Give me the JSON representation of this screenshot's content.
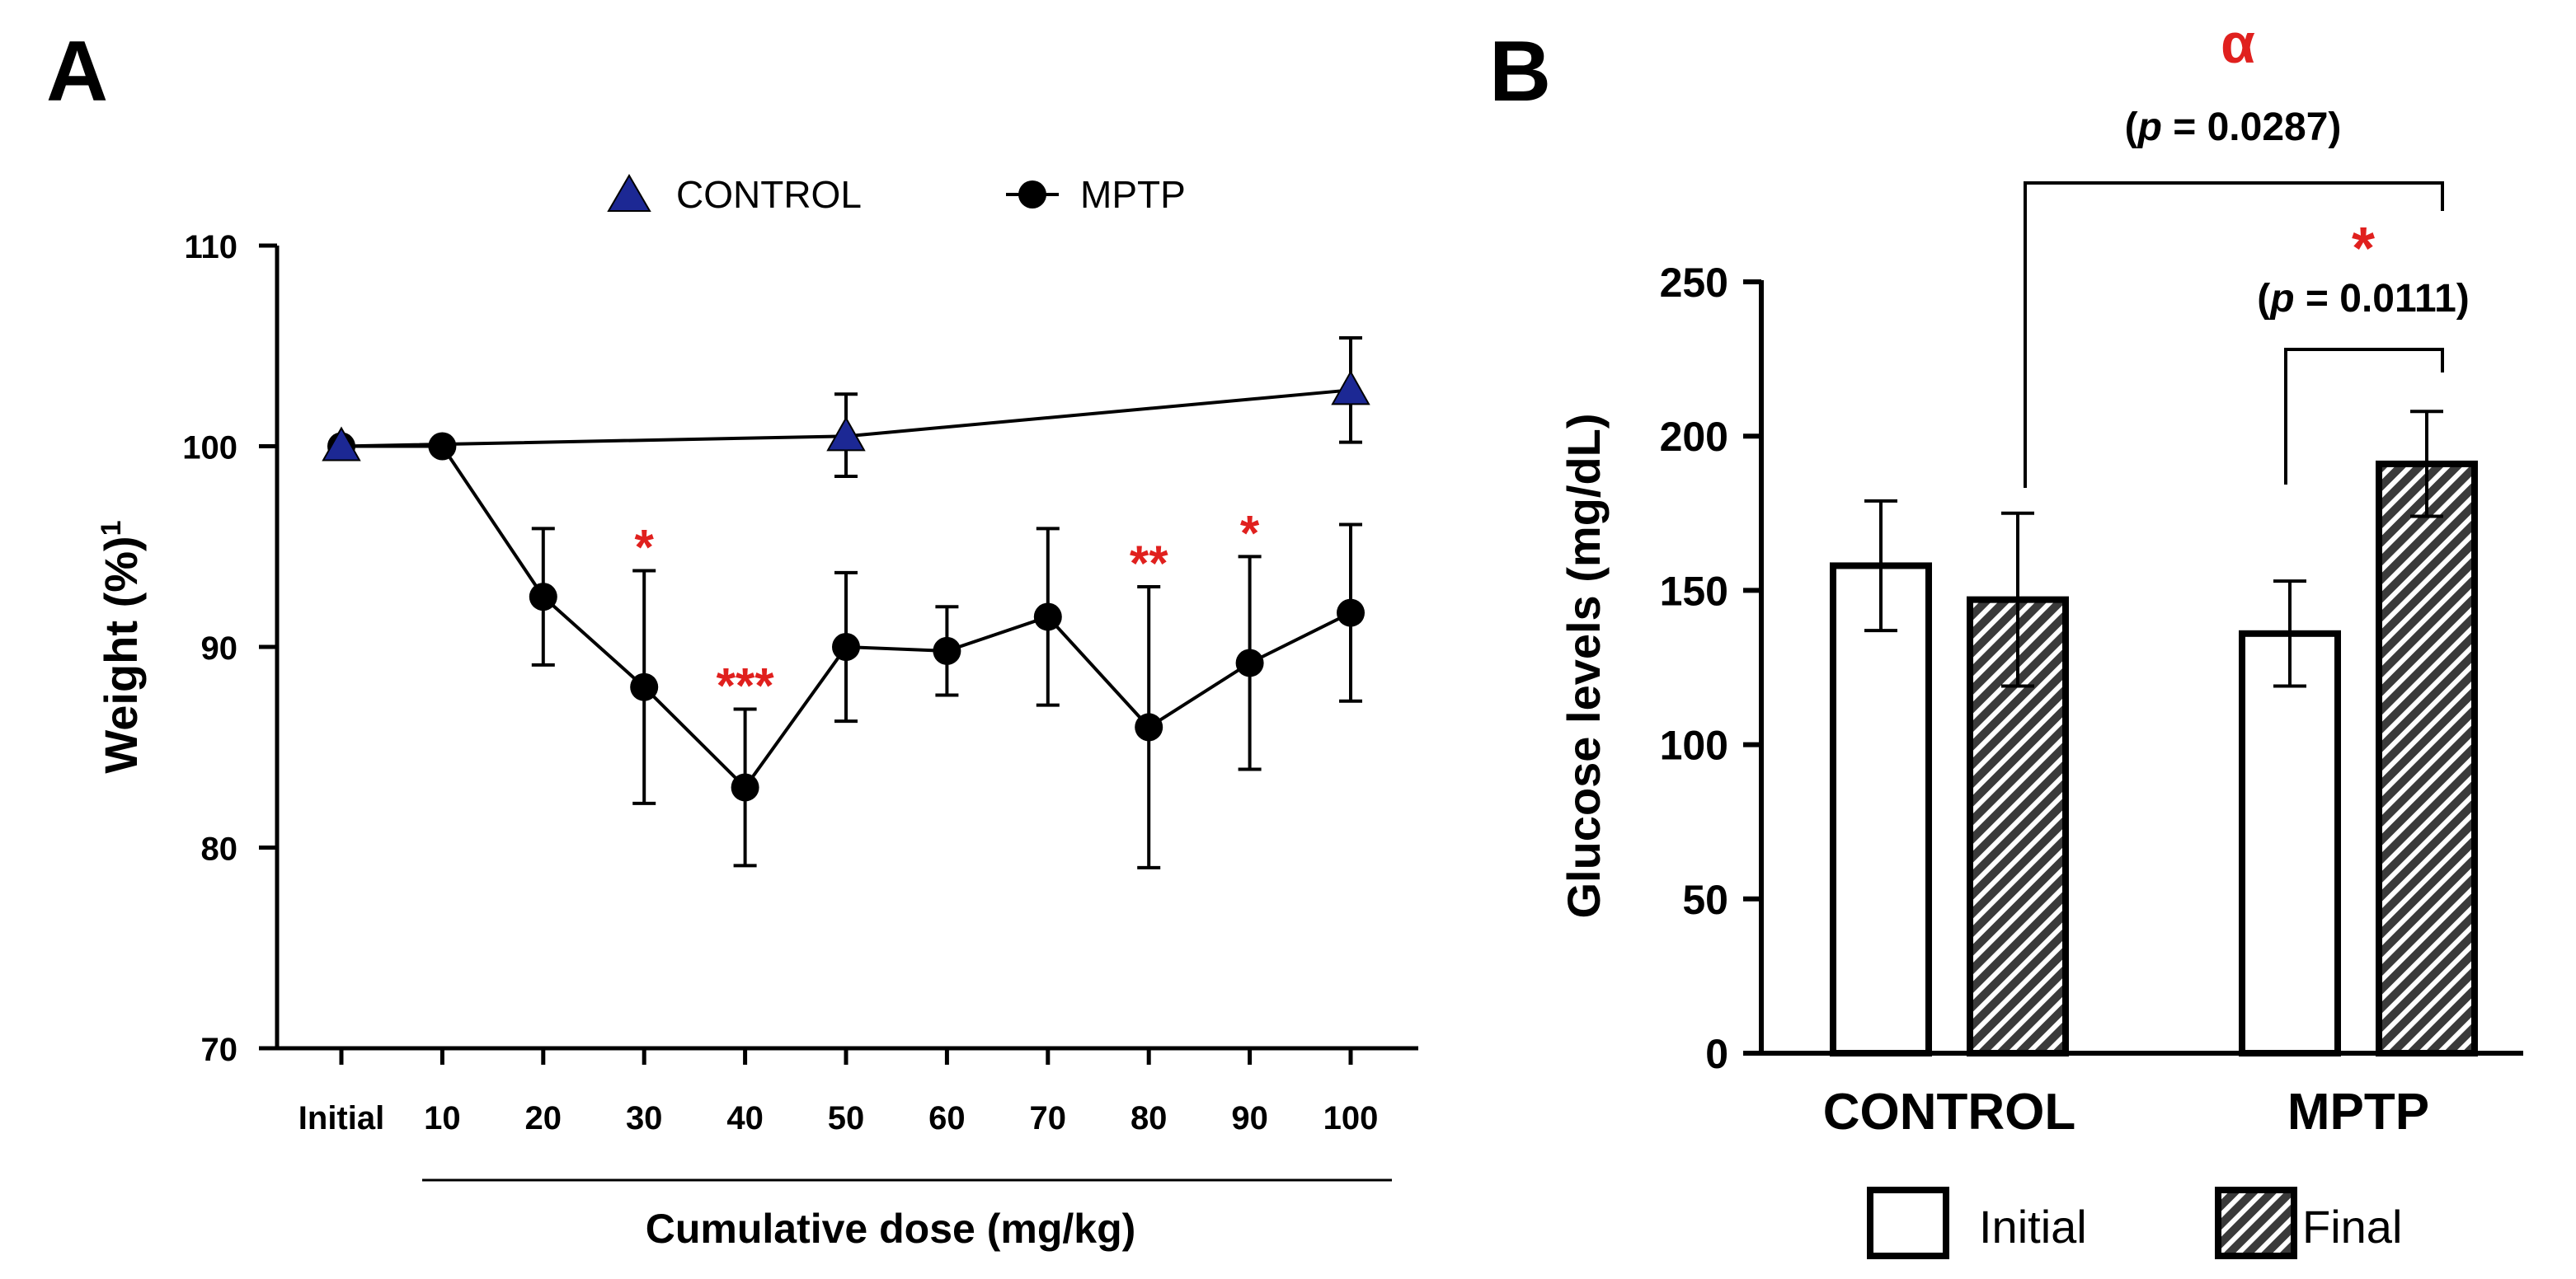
{
  "colors": {
    "ink": "#000000",
    "control": "#1c2894",
    "significance": "#e0201e",
    "bar_fill": "#ffffff",
    "hatch_bg": "#3a3a3a"
  },
  "chart_data": [
    {
      "panel_label": "A",
      "type": "line",
      "xlabel": "Cumulative dose (mg/kg)",
      "ylabel": "Weight (%)",
      "ylabel_superscript": "1",
      "ylim": [
        70,
        110
      ],
      "yticks": [
        "70",
        "80",
        "90",
        "100",
        "110"
      ],
      "categories": [
        "Initial",
        "10",
        "20",
        "30",
        "40",
        "50",
        "60",
        "70",
        "80",
        "90",
        "100"
      ],
      "legend": [
        {
          "label": "CONTROL",
          "marker": "triangle",
          "color": "#1c2894"
        },
        {
          "label": "MPTP",
          "marker": "circle",
          "color": "#000000"
        }
      ],
      "series": [
        {
          "name": "CONTROL",
          "x": [
            "Initial",
            "50",
            "100"
          ],
          "values": [
            100,
            100.5,
            102.8
          ],
          "err_up": [
            0,
            2.1,
            2.6
          ],
          "err_down": [
            0,
            2.0,
            2.6
          ]
        },
        {
          "name": "MPTP",
          "x": [
            "Initial",
            "10",
            "20",
            "30",
            "40",
            "50",
            "60",
            "70",
            "80",
            "90",
            "100"
          ],
          "values": [
            100,
            100,
            92.5,
            88,
            83,
            90,
            89.8,
            91.5,
            86,
            89.2,
            91.7
          ],
          "err_up": [
            0,
            0,
            3.4,
            5.8,
            3.9,
            3.7,
            2.2,
            4.4,
            7.0,
            5.3,
            4.4
          ],
          "err_down": [
            0,
            0,
            3.4,
            5.8,
            3.9,
            3.7,
            2.2,
            4.4,
            7.0,
            5.3,
            4.4
          ]
        }
      ],
      "annotations": [
        {
          "x": "30",
          "text": "*"
        },
        {
          "x": "40",
          "text": "***"
        },
        {
          "x": "80",
          "text": "**"
        },
        {
          "x": "90",
          "text": "*"
        }
      ]
    },
    {
      "panel_label": "B",
      "type": "bar",
      "ylabel": "Glucose levels (mg/dL)",
      "ylim": [
        0,
        250
      ],
      "yticks": [
        "0",
        "50",
        "100",
        "150",
        "200",
        "250"
      ],
      "categories": [
        "CONTROL",
        "MPTP"
      ],
      "series": [
        {
          "name": "Initial",
          "pattern": "open",
          "values": [
            158,
            136
          ],
          "err": [
            21,
            17
          ]
        },
        {
          "name": "Final",
          "pattern": "hatched",
          "values": [
            147,
            191
          ],
          "err": [
            28,
            17
          ]
        }
      ],
      "legend": [
        "Initial",
        "Final"
      ],
      "comparisons": [
        {
          "symbol": "α",
          "p_text": "(p = 0.0287)",
          "p_letter": "p",
          "p_value": "= 0.0287",
          "from": "CONTROL Final",
          "to": "MPTP Final"
        },
        {
          "symbol": "*",
          "p_text": "(p = 0.0111)",
          "p_letter": "p",
          "p_value": "= 0.0111",
          "from": "MPTP Initial",
          "to": "MPTP Final"
        }
      ]
    }
  ]
}
